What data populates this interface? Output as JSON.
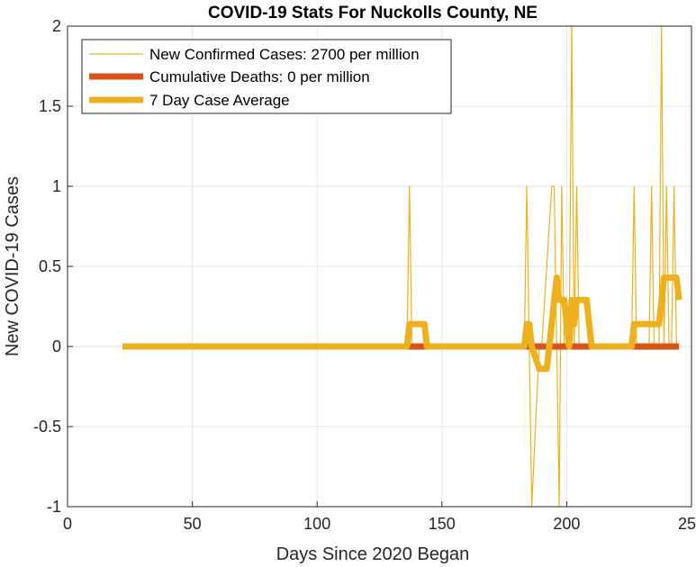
{
  "chart_data": {
    "type": "line",
    "title": "COVID-19 Stats For Nuckolls County, NE",
    "xlabel": "Days Since 2020 Began",
    "ylabel": "New COVID-19 Cases",
    "xlim": [
      0,
      250
    ],
    "ylim": [
      -1,
      2
    ],
    "xticks": [
      0,
      50,
      100,
      150,
      200,
      250
    ],
    "yticks": [
      -1,
      -0.5,
      0,
      0.5,
      1,
      1.5,
      2
    ],
    "xtick_labels": [
      "0",
      "50",
      "100",
      "150",
      "200",
      "250"
    ],
    "ytick_labels": [
      "-1",
      "-0.5",
      "0",
      "0.5",
      "1",
      "1.5",
      "2"
    ],
    "grid": true,
    "legend_position": "top-left",
    "series": [
      {
        "name": "New Confirmed Cases: 2700 per million",
        "color": "#EDB120",
        "style": "thin",
        "x": [
          22,
          136,
          137,
          138,
          183,
          184,
          185,
          186,
          189,
          190,
          194,
          195,
          196,
          197,
          198,
          199,
          200,
          201,
          202,
          203,
          204,
          205,
          206,
          226,
          227,
          228,
          233,
          234,
          235,
          237,
          238,
          239,
          240,
          241,
          242,
          243,
          244,
          245
        ],
        "y": [
          0,
          0,
          1,
          0,
          0,
          1,
          0,
          -1,
          0,
          0,
          1,
          1,
          0,
          -1,
          1,
          0,
          0,
          0,
          2,
          0,
          1,
          0,
          0,
          0,
          1,
          0,
          0,
          1,
          0,
          0,
          2,
          0,
          1,
          0,
          0,
          1,
          0,
          0
        ]
      },
      {
        "name": "Cumulative Deaths: 0 per million",
        "color": "#D95319",
        "style": "thick",
        "x": [
          22,
          245
        ],
        "y": [
          0,
          0
        ]
      },
      {
        "name": "7 Day Case Average",
        "color": "#EDB120",
        "style": "thick",
        "x": [
          22,
          136,
          137,
          138,
          143,
          144,
          183,
          184,
          185,
          186,
          189,
          190,
          192,
          193,
          194,
          195,
          196,
          197,
          198,
          199,
          200,
          201,
          202,
          203,
          204,
          205,
          208,
          209,
          210,
          226,
          227,
          228,
          233,
          234,
          235,
          236,
          237,
          238,
          239,
          240,
          241,
          242,
          244,
          245
        ],
        "y": [
          0,
          0,
          0.14,
          0.14,
          0.14,
          0,
          0,
          0.14,
          0.14,
          0,
          -0.14,
          -0.14,
          -0.14,
          0,
          0.14,
          0.29,
          0.43,
          0.29,
          0.29,
          0.29,
          0.14,
          0,
          0.29,
          0.14,
          0.29,
          0.29,
          0.29,
          0.14,
          0,
          0,
          0.14,
          0.14,
          0.14,
          0.14,
          0.14,
          0.14,
          0.14,
          0.29,
          0.43,
          0.43,
          0.43,
          0.43,
          0.43,
          0.29
        ]
      }
    ]
  }
}
